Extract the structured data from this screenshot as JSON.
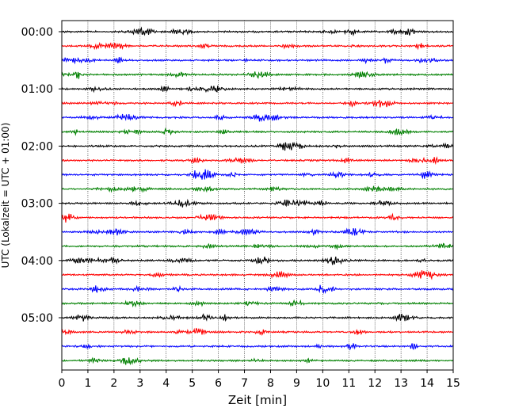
{
  "chart_data": {
    "type": "line",
    "title": "",
    "xlabel": "Zeit  [min]",
    "ylabel": "UTC (Lokalzeit = UTC + 01:00)",
    "xlim": [
      0,
      15
    ],
    "x_ticks": [
      "0",
      "1",
      "2",
      "3",
      "4",
      "5",
      "6",
      "7",
      "8",
      "9",
      "10",
      "11",
      "12",
      "13",
      "14",
      "15"
    ],
    "y_ticks": [
      "00:00",
      "01:00",
      "02:00",
      "03:00",
      "04:00",
      "05:00"
    ],
    "trace_interval_min": 15,
    "trace_count": 24,
    "colors": [
      "#000000",
      "#ff0000",
      "#0000ff",
      "#008000"
    ],
    "grid": "vertical dotted lines at each minute"
  }
}
